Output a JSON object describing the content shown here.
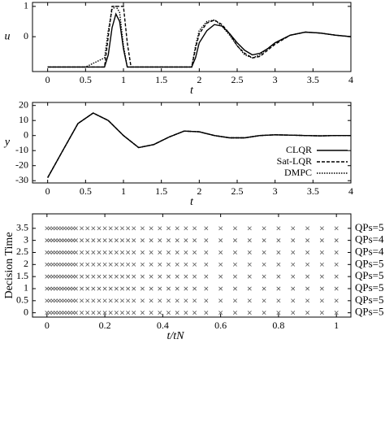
{
  "chart_data": [
    {
      "type": "line",
      "y_label": "u",
      "x_label": "t",
      "x": [
        0,
        0.5,
        0.75,
        0.8,
        0.85,
        0.9,
        0.95,
        1.0,
        1.05,
        1.1,
        1.5,
        1.9,
        1.95,
        2.0,
        2.1,
        2.2,
        2.3,
        2.4,
        2.5,
        2.6,
        2.7,
        2.8,
        2.9,
        3.0,
        3.2,
        3.4,
        3.6,
        3.8,
        4.0
      ],
      "xlim": [
        -0.2,
        4
      ],
      "ylim": [
        -1.15,
        1.13
      ],
      "xticks": [
        0,
        0.5,
        1,
        1.5,
        2,
        2.5,
        3,
        3.5,
        4
      ],
      "yticks": [
        0,
        1
      ],
      "series": [
        {
          "color": "#000000",
          "line_style": "solid",
          "values": [
            -1,
            -1,
            -1,
            -0.6,
            0.3,
            0.75,
            0.5,
            -0.4,
            -1,
            -1,
            -1,
            -1,
            -0.7,
            -0.2,
            0.2,
            0.4,
            0.35,
            0.1,
            -0.2,
            -0.45,
            -0.6,
            -0.55,
            -0.4,
            -0.2,
            0.05,
            0.15,
            0.12,
            0.05,
            0
          ]
        },
        {
          "color": "#000000",
          "line_style": "dashed",
          "values": [
            -1,
            -1,
            -1,
            0,
            1,
            1,
            1,
            1,
            -0.2,
            -1,
            -1,
            -1,
            -0.4,
            0.1,
            0.45,
            0.55,
            0.4,
            0.1,
            -0.3,
            -0.55,
            -0.7,
            -0.65,
            -0.45,
            -0.25,
            0.05,
            0.15,
            0.12,
            0.05,
            0
          ]
        },
        {
          "color": "#000000",
          "line_style": "dotted",
          "values": [
            -1,
            -1,
            -0.7,
            0.2,
            0.9,
            1,
            0.8,
            -0.3,
            -1,
            -1,
            -1,
            -1,
            -0.3,
            0.2,
            0.5,
            0.55,
            0.35,
            0.05,
            -0.3,
            -0.6,
            -0.7,
            -0.6,
            -0.4,
            -0.2,
            0.05,
            0.15,
            0.12,
            0.05,
            0
          ]
        }
      ]
    },
    {
      "type": "line",
      "y_label": "y",
      "x_label": "t",
      "x": [
        0,
        0.2,
        0.4,
        0.6,
        0.8,
        1.0,
        1.2,
        1.4,
        1.6,
        1.8,
        2.0,
        2.2,
        2.4,
        2.6,
        2.8,
        3.0,
        3.2,
        3.4,
        3.6,
        3.8,
        4.0
      ],
      "xlim": [
        -0.2,
        4
      ],
      "ylim": [
        -31.5,
        22
      ],
      "xticks": [
        0,
        0.5,
        1,
        1.5,
        2,
        2.5,
        3,
        3.5,
        4
      ],
      "yticks": [
        -30,
        -20,
        -10,
        0,
        10,
        20
      ],
      "legend": "lower right",
      "series": [
        {
          "name": "CLQR",
          "color": "#000000",
          "line_style": "solid",
          "values": [
            -28,
            -10,
            8,
            15,
            10,
            0,
            -8,
            -6,
            -1,
            3,
            2.5,
            0,
            -1.5,
            -1.5,
            0,
            0.5,
            0.3,
            0,
            -0.2,
            0,
            0
          ]
        },
        {
          "name": "Sat-LQR",
          "color": "#000000",
          "line_style": "dashed",
          "values": [
            -28,
            -10,
            8,
            15,
            10,
            0,
            -8,
            -6,
            -1,
            3,
            2.5,
            0,
            -1.5,
            -1.5,
            0,
            0.5,
            0.3,
            0,
            -0.2,
            0,
            0
          ]
        },
        {
          "name": "DMPC",
          "color": "#000000",
          "line_style": "dotted",
          "values": [
            -28,
            -10,
            8,
            15,
            10,
            0,
            -8,
            -6,
            -1,
            3,
            2.5,
            0,
            -1.5,
            -1.5,
            0,
            0.5,
            0.3,
            0,
            -0.2,
            0,
            0
          ]
        }
      ]
    },
    {
      "type": "scatter",
      "y_label": "Decision Time",
      "x_label": "t/tN",
      "x": [
        0,
        0.01,
        0.02,
        0.03,
        0.04,
        0.05,
        0.06,
        0.07,
        0.08,
        0.09,
        0.1,
        0.12,
        0.14,
        0.16,
        0.18,
        0.2,
        0.22,
        0.24,
        0.26,
        0.28,
        0.3,
        0.33,
        0.36,
        0.39,
        0.42,
        0.45,
        0.48,
        0.51,
        0.55,
        0.6,
        0.65,
        0.7,
        0.75,
        0.8,
        0.85,
        0.9,
        0.95,
        1.0
      ],
      "rows": [
        3.5,
        3,
        2.5,
        2,
        1.5,
        1,
        0.5,
        0
      ],
      "row_labels": [
        "QPs=5",
        "QPs=4",
        "QPs=4",
        "QPs=5",
        "QPs=5",
        "QPs=5",
        "QPs=5",
        "QPs=5"
      ],
      "color": "#555555",
      "xlim": [
        -0.05,
        1.05
      ],
      "ylim": [
        -0.18,
        4.1
      ],
      "xticks": [
        0,
        0.2,
        0.4,
        0.6,
        0.8,
        1
      ],
      "yticks": [
        0,
        0.5,
        1,
        1.5,
        2,
        2.5,
        3,
        3.5
      ]
    }
  ]
}
